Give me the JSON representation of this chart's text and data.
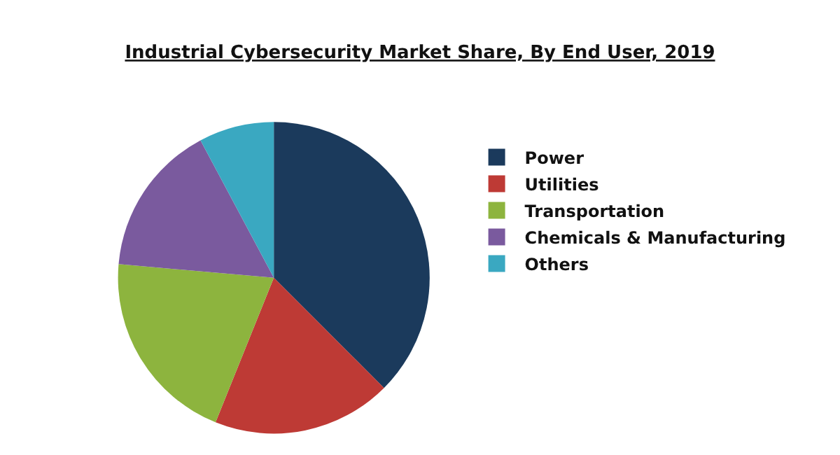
{
  "chart_data": {
    "type": "pie",
    "title": "Industrial Cybersecurity Market Share, By End User, 2019",
    "categories": [
      "Power",
      "Utilities",
      "Transportation",
      "Chemicals & Manufacturing",
      "Others"
    ],
    "values": [
      37.5,
      18.6,
      20.3,
      15.8,
      7.8
    ],
    "colors": [
      "#1b3a5c",
      "#be3a35",
      "#8db43e",
      "#7a5a9e",
      "#3aa8c1"
    ],
    "legend": "right"
  }
}
